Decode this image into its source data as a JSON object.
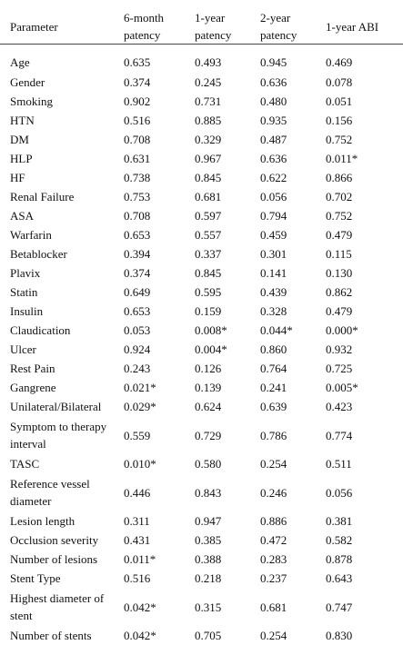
{
  "table": {
    "headers": [
      "Parameter",
      "6-month patency",
      "1-year patency",
      "2-year patency",
      "1-year ABI"
    ],
    "rows": [
      {
        "label": "Age",
        "values": [
          "0.635",
          "0.493",
          "0.945",
          "0.469"
        ]
      },
      {
        "label": "Gender",
        "values": [
          "0.374",
          "0.245",
          "0.636",
          "0.078"
        ]
      },
      {
        "label": "Smoking",
        "values": [
          "0.902",
          "0.731",
          "0.480",
          "0.051"
        ]
      },
      {
        "label": "HTN",
        "values": [
          "0.516",
          "0.885",
          "0.935",
          "0.156"
        ]
      },
      {
        "label": "DM",
        "values": [
          "0.708",
          "0.329",
          "0.487",
          "0.752"
        ]
      },
      {
        "label": "HLP",
        "values": [
          "0.631",
          "0.967",
          "0.636",
          "0.011*"
        ]
      },
      {
        "label": "HF",
        "values": [
          "0.738",
          "0.845",
          "0.622",
          "0.866"
        ]
      },
      {
        "label": "Renal Failure",
        "values": [
          "0.753",
          "0.681",
          "0.056",
          "0.702"
        ]
      },
      {
        "label": "ASA",
        "values": [
          "0.708",
          "0.597",
          "0.794",
          "0.752"
        ]
      },
      {
        "label": "Warfarin",
        "values": [
          "0.653",
          "0.557",
          "0.459",
          "0.479"
        ]
      },
      {
        "label": "Betablocker",
        "values": [
          "0.394",
          "0.337",
          "0.301",
          "0.115"
        ]
      },
      {
        "label": "Plavix",
        "values": [
          "0.374",
          "0.845",
          "0.141",
          "0.130"
        ]
      },
      {
        "label": "Statin",
        "values": [
          "0.649",
          "0.595",
          "0.439",
          "0.862"
        ]
      },
      {
        "label": "Insulin",
        "values": [
          "0.653",
          "0.159",
          "0.328",
          "0.479"
        ]
      },
      {
        "label": "Claudication",
        "values": [
          "0.053",
          "0.008*",
          "0.044*",
          "0.000*"
        ]
      },
      {
        "label": "Ulcer",
        "values": [
          "0.924",
          "0.004*",
          "0.860",
          "0.932"
        ]
      },
      {
        "label": "Rest Pain",
        "values": [
          "0.243",
          "0.126",
          "0.764",
          "0.725"
        ]
      },
      {
        "label": "Gangrene",
        "values": [
          "0.021*",
          "0.139",
          "0.241",
          "0.005*"
        ]
      },
      {
        "label": "Unilateral/Bilateral",
        "values": [
          "0.029*",
          "0.624",
          "0.639",
          "0.423"
        ]
      },
      {
        "label": "Symptom to therapy interval",
        "values": [
          "0.559",
          "0.729",
          "0.786",
          "0.774"
        ]
      },
      {
        "label": "TASC",
        "values": [
          "0.010*",
          "0.580",
          "0.254",
          "0.511"
        ]
      },
      {
        "label": "Reference vessel diameter",
        "values": [
          "0.446",
          "0.843",
          "0.246",
          "0.056"
        ]
      },
      {
        "label": "Lesion length",
        "values": [
          "0.311",
          "0.947",
          "0.886",
          "0.381"
        ]
      },
      {
        "label": "Occlusion severity",
        "values": [
          "0.431",
          "0.385",
          "0.472",
          "0.582"
        ]
      },
      {
        "label": "Number of lesions",
        "values": [
          "0.011*",
          "0.388",
          "0.283",
          "0.878"
        ]
      },
      {
        "label": "Stent Type",
        "values": [
          "0.516",
          "0.218",
          "0.237",
          "0.643"
        ]
      },
      {
        "label": "Highest diameter of stent",
        "values": [
          "0.042*",
          "0.315",
          "0.681",
          "0.747"
        ]
      },
      {
        "label": "Number of stents",
        "values": [
          "0.042*",
          "0.705",
          "0.254",
          "0.830"
        ]
      }
    ]
  }
}
